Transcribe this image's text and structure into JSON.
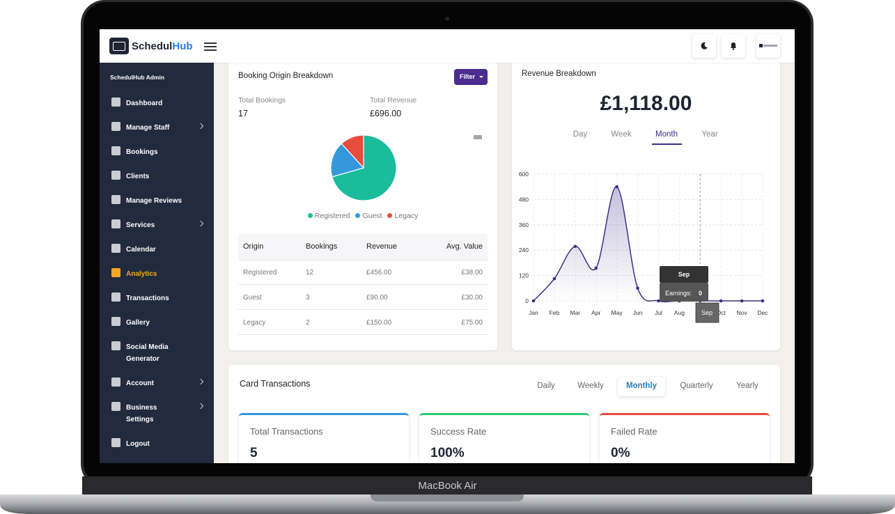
{
  "device": {
    "label": "MacBook Air"
  },
  "header": {
    "brand": "Schedul",
    "brand_accent": "Hub"
  },
  "sidebar": {
    "section_title": "SchedulHub Admin",
    "items": [
      {
        "label": "Dashboard",
        "has_submenu": false,
        "active": false
      },
      {
        "label": "Manage Staff",
        "has_submenu": true,
        "active": false
      },
      {
        "label": "Bookings",
        "has_submenu": false,
        "active": false
      },
      {
        "label": "Clients",
        "has_submenu": false,
        "active": false
      },
      {
        "label": "Manage Reviews",
        "has_submenu": false,
        "active": false
      },
      {
        "label": "Services",
        "has_submenu": true,
        "active": false
      },
      {
        "label": "Calendar",
        "has_submenu": false,
        "active": false
      },
      {
        "label": "Analytics",
        "has_submenu": false,
        "active": true
      },
      {
        "label": "Transactions",
        "has_submenu": false,
        "active": false
      },
      {
        "label": "Gallery",
        "has_submenu": false,
        "active": false
      },
      {
        "label": "Social Media Generator",
        "has_submenu": false,
        "active": false
      },
      {
        "label": "Account",
        "has_submenu": true,
        "active": false
      },
      {
        "label": "Business Settings",
        "has_submenu": true,
        "active": false
      },
      {
        "label": "Logout",
        "has_submenu": false,
        "active": false
      }
    ]
  },
  "booking_origin": {
    "title": "Booking Origin Breakdown",
    "filter": "Filter",
    "stats": [
      {
        "label": "Total Bookings",
        "value": "17"
      },
      {
        "label": "Total Revenue",
        "value": "£696.00"
      }
    ],
    "chart": {
      "type": "pie",
      "categories": [
        "Registered",
        "Guest",
        "Legacy"
      ],
      "values": [
        12,
        3,
        2
      ],
      "colors": [
        "#1abc9c",
        "#3498db",
        "#e74c3c"
      ]
    },
    "table": {
      "headers": [
        "Origin",
        "Bookings",
        "Revenue",
        "Avg. Value"
      ],
      "rows": [
        [
          "Registered",
          "12",
          "£456.00",
          "£38.00"
        ],
        [
          "Guest",
          "3",
          "£90.00",
          "£30.00"
        ],
        [
          "Legacy",
          "2",
          "£150.00",
          "£75.00"
        ]
      ]
    }
  },
  "revenue": {
    "title": "Revenue Breakdown",
    "total": "£1,118.00",
    "tabs": [
      {
        "label": "Day",
        "active": false
      },
      {
        "label": "Week",
        "active": false
      },
      {
        "label": "Month",
        "active": true
      },
      {
        "label": "Year",
        "active": false
      }
    ],
    "chart": {
      "type": "line",
      "categories": [
        "Jan",
        "Feb",
        "Mar",
        "Apr",
        "May",
        "Jun",
        "Jul",
        "Aug",
        "Sep",
        "Oct",
        "Nov",
        "Dec"
      ],
      "values": [
        0,
        105,
        258,
        155,
        540,
        60,
        0,
        0,
        0,
        0,
        0,
        0
      ],
      "color": "#3f2d84",
      "ylim": [
        0,
        600
      ],
      "yticks": [
        0,
        120,
        240,
        360,
        480,
        600
      ],
      "grid": true
    },
    "tooltip": {
      "label": "Earnings:"
    }
  },
  "transactions": {
    "title": "Card Transactions",
    "tabs": [
      {
        "label": "Daily",
        "active": false
      },
      {
        "label": "Weekly",
        "active": false
      },
      {
        "label": "Monthly",
        "active": true
      },
      {
        "label": "Quarterly",
        "active": false
      },
      {
        "label": "Yearly",
        "active": false
      }
    ],
    "cards": [
      {
        "label": "Total Transactions",
        "value": "5",
        "color": "#3498db"
      },
      {
        "label": "Success Rate",
        "value": "100%",
        "color": "#2ecc71"
      },
      {
        "label": "Failed Rate",
        "value": "0%",
        "color": "#e74c3c"
      }
    ]
  }
}
